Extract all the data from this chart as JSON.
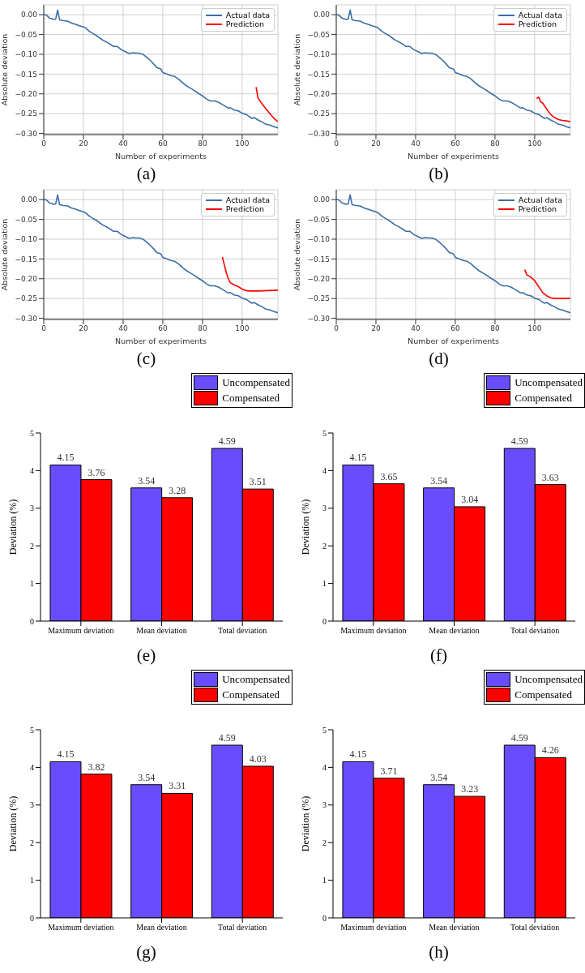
{
  "chart_data": [
    {
      "type": "line",
      "xlabel": "Number of experiments",
      "ylabel": "Absolute deviation",
      "annotations": [
        "(a)"
      ],
      "xlim": [
        0,
        118
      ],
      "xticks": [
        0,
        20,
        40,
        60,
        80,
        100
      ],
      "ylim": [
        -0.303,
        0.025
      ],
      "yticks": [
        {
          "value": 0,
          "label": "0.00"
        },
        {
          "value": -0.05,
          "label": "−0.05"
        },
        {
          "value": -0.1,
          "label": "−0.10"
        },
        {
          "value": -0.15,
          "label": "−0.15"
        },
        {
          "value": -0.2,
          "label": "−0.20"
        },
        {
          "value": -0.25,
          "label": "−0.25"
        },
        {
          "value": -0.3,
          "label": "−0.30"
        }
      ],
      "grid": true,
      "legend": "top right",
      "marker": "none",
      "series": [
        {
          "name": "Actual data",
          "color": "#3a6ea5",
          "x": [
            0,
            1,
            2,
            3,
            4,
            5,
            6,
            7,
            8,
            10,
            12,
            14,
            16,
            18,
            20,
            21,
            23,
            25,
            27,
            28,
            30,
            32,
            34,
            35,
            37,
            39,
            41,
            43,
            44,
            45,
            46,
            48,
            50,
            52,
            54,
            56,
            57,
            59,
            60,
            62,
            64,
            66,
            68,
            70,
            72,
            74,
            76,
            78,
            80,
            82,
            84,
            86,
            88,
            90,
            92,
            93,
            94,
            96,
            98,
            100,
            102,
            104,
            105,
            106,
            108,
            110,
            112,
            114,
            116,
            118
          ],
          "values": [
            0,
            0,
            -0.004,
            -0.009,
            -0.01,
            -0.012,
            -0.011,
            0.012,
            -0.013,
            -0.015,
            -0.016,
            -0.021,
            -0.024,
            -0.028,
            -0.031,
            -0.033,
            -0.042,
            -0.048,
            -0.054,
            -0.058,
            -0.065,
            -0.07,
            -0.076,
            -0.08,
            -0.08,
            -0.088,
            -0.093,
            -0.098,
            -0.097,
            -0.096,
            -0.097,
            -0.097,
            -0.1,
            -0.108,
            -0.117,
            -0.128,
            -0.134,
            -0.137,
            -0.146,
            -0.15,
            -0.154,
            -0.156,
            -0.163,
            -0.172,
            -0.18,
            -0.186,
            -0.192,
            -0.199,
            -0.205,
            -0.213,
            -0.218,
            -0.218,
            -0.221,
            -0.227,
            -0.233,
            -0.236,
            -0.235,
            -0.241,
            -0.243,
            -0.249,
            -0.252,
            -0.259,
            -0.262,
            -0.26,
            -0.266,
            -0.271,
            -0.277,
            -0.279,
            -0.283,
            -0.286
          ]
        },
        {
          "name": "Prediction",
          "color": "#ff0000",
          "x": [
            107,
            108,
            110,
            112,
            114,
            116,
            118
          ],
          "values": [
            -0.183,
            -0.211,
            -0.225,
            -0.238,
            -0.25,
            -0.262,
            -0.27
          ]
        }
      ]
    },
    {
      "type": "line",
      "xlabel": "Number of experiments",
      "ylabel": "Absolute deviation",
      "annotations": [
        "(b)"
      ],
      "xlim": [
        0,
        118
      ],
      "xticks": [
        0,
        20,
        40,
        60,
        80,
        100
      ],
      "ylim": [
        -0.303,
        0.025
      ],
      "yticks": [
        {
          "value": 0,
          "label": "0.00"
        },
        {
          "value": -0.05,
          "label": "−0.05"
        },
        {
          "value": -0.1,
          "label": "−0.10"
        },
        {
          "value": -0.15,
          "label": "−0.15"
        },
        {
          "value": -0.2,
          "label": "−0.20"
        },
        {
          "value": -0.25,
          "label": "−0.25"
        },
        {
          "value": -0.3,
          "label": "−0.30"
        }
      ],
      "grid": true,
      "legend": "top right",
      "marker": "none",
      "series": [
        {
          "name": "Actual data",
          "color": "#3a6ea5",
          "x": [
            0,
            1,
            2,
            3,
            4,
            5,
            6,
            7,
            8,
            10,
            12,
            14,
            16,
            18,
            20,
            21,
            23,
            25,
            27,
            28,
            30,
            32,
            34,
            35,
            37,
            39,
            41,
            43,
            44,
            45,
            46,
            48,
            50,
            52,
            54,
            56,
            57,
            59,
            60,
            62,
            64,
            66,
            68,
            70,
            72,
            74,
            76,
            78,
            80,
            82,
            84,
            86,
            88,
            90,
            92,
            93,
            94,
            96,
            98,
            100,
            102,
            104,
            105,
            106,
            108,
            110,
            112,
            114,
            116,
            118
          ],
          "values": [
            0,
            0,
            -0.004,
            -0.009,
            -0.01,
            -0.012,
            -0.011,
            0.012,
            -0.013,
            -0.015,
            -0.016,
            -0.021,
            -0.024,
            -0.028,
            -0.031,
            -0.033,
            -0.042,
            -0.048,
            -0.054,
            -0.058,
            -0.065,
            -0.07,
            -0.076,
            -0.08,
            -0.08,
            -0.088,
            -0.093,
            -0.098,
            -0.097,
            -0.096,
            -0.097,
            -0.097,
            -0.1,
            -0.108,
            -0.117,
            -0.128,
            -0.134,
            -0.137,
            -0.146,
            -0.15,
            -0.154,
            -0.156,
            -0.163,
            -0.172,
            -0.18,
            -0.186,
            -0.192,
            -0.199,
            -0.205,
            -0.213,
            -0.218,
            -0.218,
            -0.221,
            -0.227,
            -0.233,
            -0.236,
            -0.235,
            -0.241,
            -0.243,
            -0.249,
            -0.252,
            -0.259,
            -0.262,
            -0.26,
            -0.266,
            -0.271,
            -0.277,
            -0.279,
            -0.283,
            -0.286
          ]
        },
        {
          "name": "Prediction",
          "color": "#ff0000",
          "x": [
            101,
            102,
            103,
            104,
            106,
            108,
            110,
            112,
            114,
            118
          ],
          "values": [
            -0.212,
            -0.208,
            -0.22,
            -0.223,
            -0.238,
            -0.252,
            -0.26,
            -0.265,
            -0.267,
            -0.27
          ]
        }
      ]
    },
    {
      "type": "line",
      "xlabel": "Number of experiments",
      "ylabel": "Absolute deviation",
      "annotations": [
        "(c)"
      ],
      "xlim": [
        0,
        118
      ],
      "xticks": [
        0,
        20,
        40,
        60,
        80,
        100
      ],
      "ylim": [
        -0.303,
        0.025
      ],
      "yticks": [
        {
          "value": 0,
          "label": "0.00"
        },
        {
          "value": -0.05,
          "label": "−0.05"
        },
        {
          "value": -0.1,
          "label": "−0.10"
        },
        {
          "value": -0.15,
          "label": "−0.15"
        },
        {
          "value": -0.2,
          "label": "−0.20"
        },
        {
          "value": -0.25,
          "label": "−0.25"
        },
        {
          "value": -0.3,
          "label": "−0.30"
        }
      ],
      "grid": true,
      "legend": "top right",
      "marker": "none",
      "series": [
        {
          "name": "Actual data",
          "color": "#3a6ea5",
          "x": [
            0,
            1,
            2,
            3,
            4,
            5,
            6,
            7,
            8,
            10,
            12,
            14,
            16,
            18,
            20,
            21,
            23,
            25,
            27,
            28,
            30,
            32,
            34,
            35,
            37,
            39,
            41,
            43,
            44,
            45,
            46,
            48,
            50,
            52,
            54,
            56,
            57,
            59,
            60,
            62,
            64,
            66,
            68,
            70,
            72,
            74,
            76,
            78,
            80,
            82,
            84,
            86,
            88,
            90,
            92,
            93,
            94,
            96,
            98,
            100,
            102,
            104,
            105,
            106,
            108,
            110,
            112,
            114,
            116,
            118
          ],
          "values": [
            0,
            0,
            -0.004,
            -0.009,
            -0.01,
            -0.012,
            -0.011,
            0.012,
            -0.013,
            -0.015,
            -0.016,
            -0.021,
            -0.024,
            -0.028,
            -0.031,
            -0.033,
            -0.042,
            -0.048,
            -0.054,
            -0.058,
            -0.065,
            -0.07,
            -0.076,
            -0.08,
            -0.08,
            -0.088,
            -0.093,
            -0.098,
            -0.097,
            -0.096,
            -0.097,
            -0.097,
            -0.1,
            -0.108,
            -0.117,
            -0.128,
            -0.134,
            -0.137,
            -0.146,
            -0.15,
            -0.154,
            -0.156,
            -0.163,
            -0.172,
            -0.18,
            -0.186,
            -0.192,
            -0.199,
            -0.205,
            -0.213,
            -0.218,
            -0.218,
            -0.221,
            -0.227,
            -0.233,
            -0.236,
            -0.235,
            -0.241,
            -0.243,
            -0.249,
            -0.252,
            -0.259,
            -0.262,
            -0.26,
            -0.266,
            -0.271,
            -0.277,
            -0.279,
            -0.283,
            -0.286
          ]
        },
        {
          "name": "Prediction",
          "color": "#ff0000",
          "x": [
            90,
            91,
            92,
            93,
            94,
            96,
            98,
            100,
            102,
            104,
            108,
            118
          ],
          "values": [
            -0.145,
            -0.165,
            -0.185,
            -0.2,
            -0.21,
            -0.216,
            -0.22,
            -0.226,
            -0.23,
            -0.231,
            -0.231,
            -0.229
          ]
        }
      ]
    },
    {
      "type": "line",
      "xlabel": "Number of experiments",
      "ylabel": "Absolute deviation",
      "annotations": [
        "(d)"
      ],
      "xlim": [
        0,
        118
      ],
      "xticks": [
        0,
        20,
        40,
        60,
        80,
        100
      ],
      "ylim": [
        -0.303,
        0.025
      ],
      "yticks": [
        {
          "value": 0,
          "label": "0.00"
        },
        {
          "value": -0.05,
          "label": "−0.05"
        },
        {
          "value": -0.1,
          "label": "−0.10"
        },
        {
          "value": -0.15,
          "label": "−0.15"
        },
        {
          "value": -0.2,
          "label": "−0.20"
        },
        {
          "value": -0.25,
          "label": "−0.25"
        },
        {
          "value": -0.3,
          "label": "−0.30"
        }
      ],
      "grid": true,
      "legend": "top right",
      "marker": "none",
      "series": [
        {
          "name": "Actual data",
          "color": "#3a6ea5",
          "x": [
            0,
            1,
            2,
            3,
            4,
            5,
            6,
            7,
            8,
            10,
            12,
            14,
            16,
            18,
            20,
            21,
            23,
            25,
            27,
            28,
            30,
            32,
            34,
            35,
            37,
            39,
            41,
            43,
            44,
            45,
            46,
            48,
            50,
            52,
            54,
            56,
            57,
            59,
            60,
            62,
            64,
            66,
            68,
            70,
            72,
            74,
            76,
            78,
            80,
            82,
            84,
            86,
            88,
            90,
            92,
            93,
            94,
            96,
            98,
            100,
            102,
            104,
            105,
            106,
            108,
            110,
            112,
            114,
            116,
            118
          ],
          "values": [
            0,
            0,
            -0.004,
            -0.009,
            -0.01,
            -0.012,
            -0.011,
            0.012,
            -0.013,
            -0.015,
            -0.016,
            -0.021,
            -0.024,
            -0.028,
            -0.031,
            -0.033,
            -0.042,
            -0.048,
            -0.054,
            -0.058,
            -0.065,
            -0.07,
            -0.076,
            -0.08,
            -0.08,
            -0.088,
            -0.093,
            -0.098,
            -0.097,
            -0.096,
            -0.097,
            -0.097,
            -0.1,
            -0.108,
            -0.117,
            -0.128,
            -0.134,
            -0.137,
            -0.146,
            -0.15,
            -0.154,
            -0.156,
            -0.163,
            -0.172,
            -0.18,
            -0.186,
            -0.192,
            -0.199,
            -0.205,
            -0.213,
            -0.218,
            -0.218,
            -0.221,
            -0.227,
            -0.233,
            -0.236,
            -0.235,
            -0.241,
            -0.243,
            -0.249,
            -0.252,
            -0.259,
            -0.262,
            -0.26,
            -0.266,
            -0.271,
            -0.277,
            -0.279,
            -0.283,
            -0.286
          ]
        },
        {
          "name": "Prediction",
          "color": "#ff0000",
          "x": [
            95,
            96,
            98,
            100,
            102,
            104,
            106,
            108,
            110,
            118
          ],
          "values": [
            -0.177,
            -0.19,
            -0.196,
            -0.205,
            -0.22,
            -0.235,
            -0.243,
            -0.248,
            -0.25,
            -0.25
          ]
        }
      ]
    },
    {
      "type": "bar",
      "ylabel": "Deviation (%)",
      "annotations": [
        "(e)"
      ],
      "categories": [
        "Maximum deviation",
        "Mean deviation",
        "Total deviation"
      ],
      "ylim": [
        0,
        5
      ],
      "yticks": [
        0,
        1,
        2,
        3,
        4,
        5
      ],
      "legend": "top right",
      "data_labels": true,
      "series": [
        {
          "name": "Uncompensated",
          "color": "#6a4cff",
          "values": [
            4.15,
            3.54,
            4.59
          ]
        },
        {
          "name": "Compensated",
          "color": "#ff0000",
          "values": [
            3.76,
            3.28,
            3.51
          ]
        }
      ]
    },
    {
      "type": "bar",
      "ylabel": "Deviation (%)",
      "annotations": [
        "(f)"
      ],
      "categories": [
        "Maximum deviation",
        "Mean deviation",
        "Total deviation"
      ],
      "ylim": [
        0,
        5
      ],
      "yticks": [
        0,
        1,
        2,
        3,
        4,
        5
      ],
      "legend": "top right",
      "data_labels": true,
      "series": [
        {
          "name": "Uncompensated",
          "color": "#6a4cff",
          "values": [
            4.15,
            3.54,
            4.59
          ]
        },
        {
          "name": "Compensated",
          "color": "#ff0000",
          "values": [
            3.65,
            3.04,
            3.63
          ]
        }
      ]
    },
    {
      "type": "bar",
      "ylabel": "Deviation (%)",
      "annotations": [
        "(g)"
      ],
      "categories": [
        "Maximum deviation",
        "Mean deviation",
        "Total deviation"
      ],
      "ylim": [
        0,
        5
      ],
      "yticks": [
        0,
        1,
        2,
        3,
        4,
        5
      ],
      "legend": "top right",
      "data_labels": true,
      "series": [
        {
          "name": "Uncompensated",
          "color": "#6a4cff",
          "values": [
            4.15,
            3.54,
            4.59
          ]
        },
        {
          "name": "Compensated",
          "color": "#ff0000",
          "values": [
            3.82,
            3.31,
            4.03
          ]
        }
      ]
    },
    {
      "type": "bar",
      "ylabel": "Deviation (%)",
      "annotations": [
        "(h)"
      ],
      "categories": [
        "Maximum deviation",
        "Mean deviation",
        "Total deviation"
      ],
      "ylim": [
        0,
        5
      ],
      "yticks": [
        0,
        1,
        2,
        3,
        4,
        5
      ],
      "legend": "top right",
      "data_labels": true,
      "series": [
        {
          "name": "Uncompensated",
          "color": "#6a4cff",
          "values": [
            4.15,
            3.54,
            4.59
          ]
        },
        {
          "name": "Compensated",
          "color": "#ff0000",
          "values": [
            3.71,
            3.23,
            4.26
          ]
        }
      ]
    }
  ]
}
